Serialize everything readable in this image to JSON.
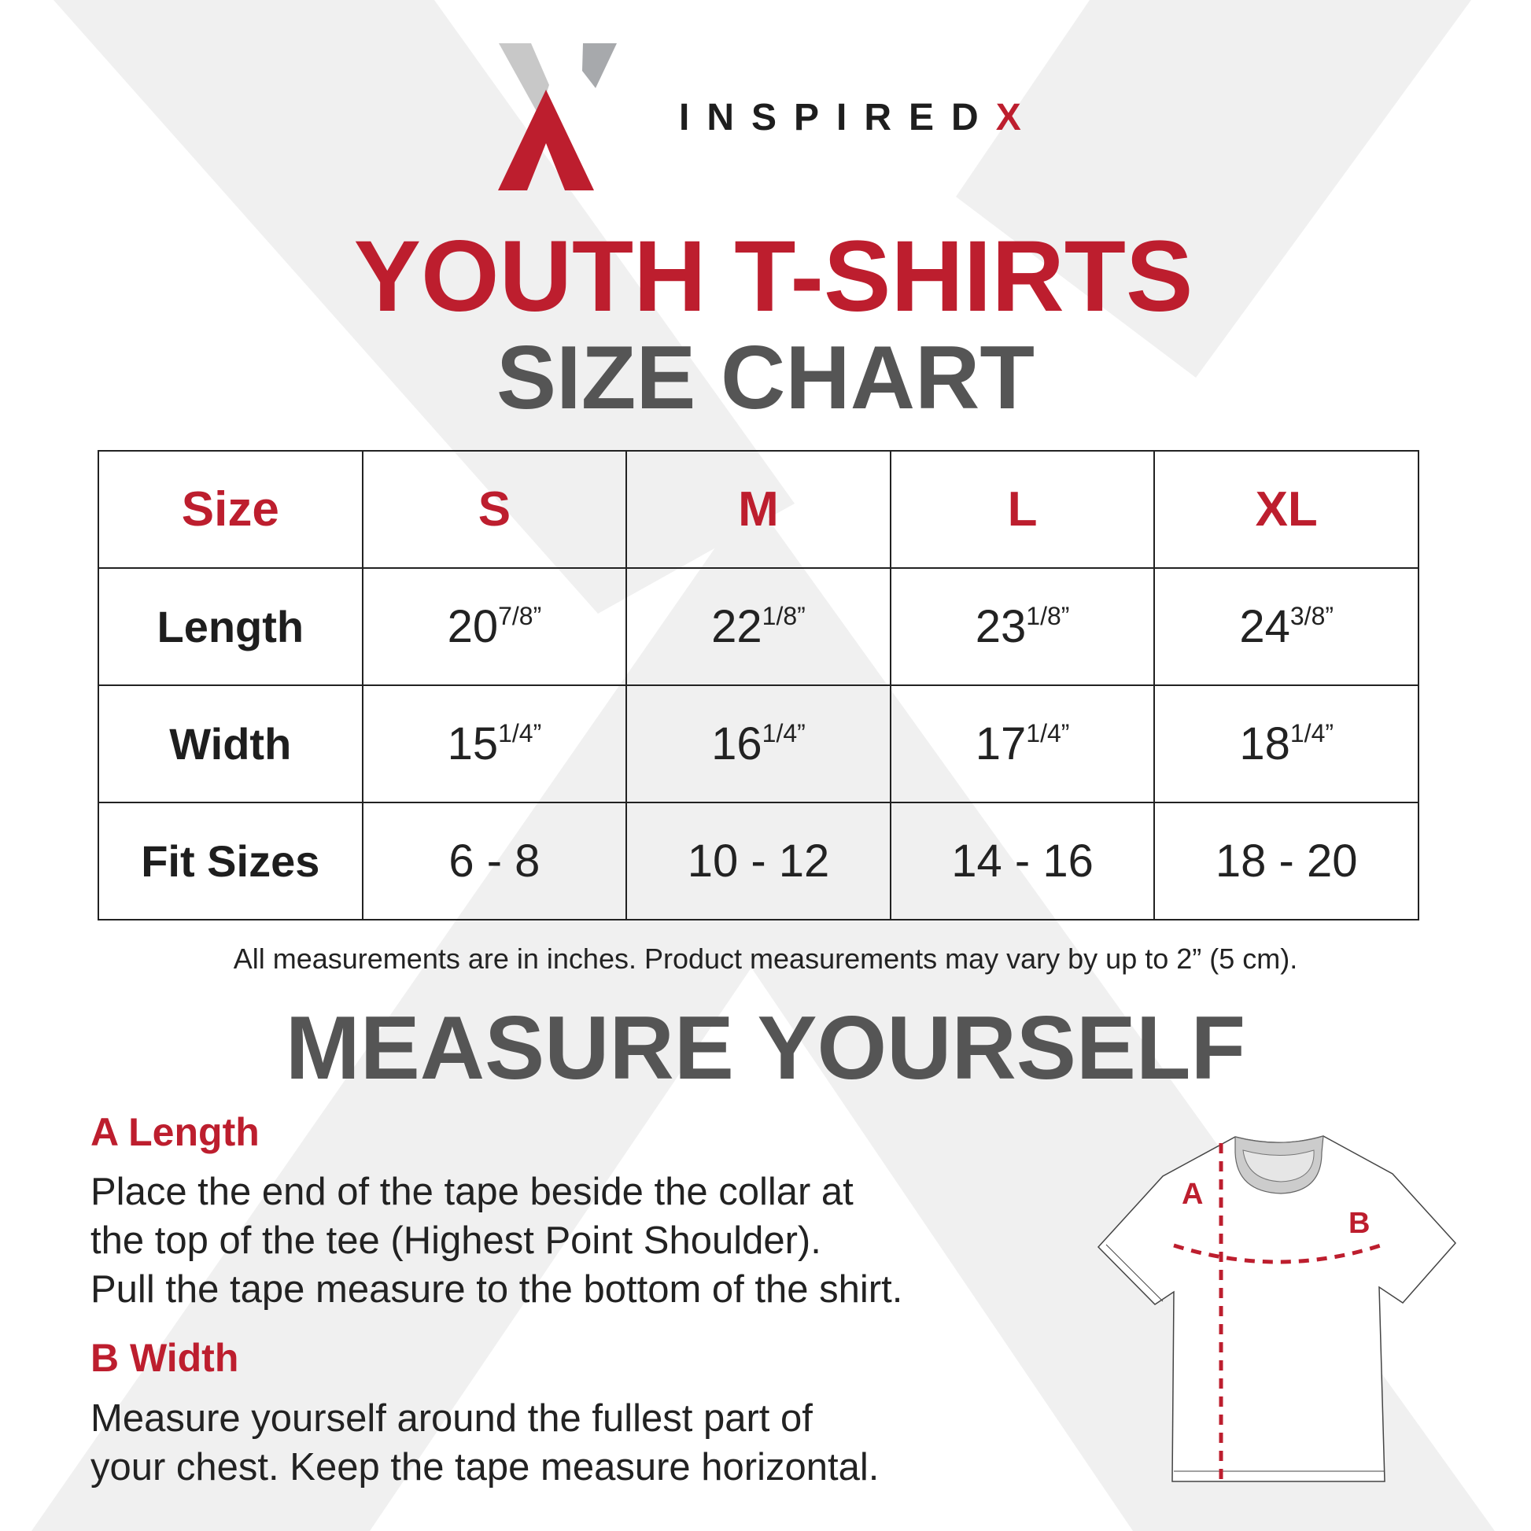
{
  "brand": {
    "name_main": "INSPIRED",
    "name_accent": "X"
  },
  "title": {
    "line1": "YOUTH T-SHIRTS",
    "line2": "SIZE CHART"
  },
  "table": {
    "header": [
      "Size",
      "S",
      "M",
      "L",
      "XL"
    ],
    "rows": [
      {
        "label": "Length",
        "cells": [
          {
            "whole": "20",
            "frac": "7/8",
            "unit": "”"
          },
          {
            "whole": "22",
            "frac": "1/8",
            "unit": "”"
          },
          {
            "whole": "23",
            "frac": "1/8",
            "unit": "”"
          },
          {
            "whole": "24",
            "frac": "3/8",
            "unit": "”"
          }
        ]
      },
      {
        "label": "Width",
        "cells": [
          {
            "whole": "15",
            "frac": "1/4",
            "unit": "”"
          },
          {
            "whole": "16",
            "frac": "1/4",
            "unit": "”"
          },
          {
            "whole": "17",
            "frac": "1/4",
            "unit": "”"
          },
          {
            "whole": "18",
            "frac": "1/4",
            "unit": "”"
          }
        ]
      },
      {
        "label": "Fit Sizes",
        "cells": [
          {
            "whole": "6 - 8"
          },
          {
            "whole": "10 - 12"
          },
          {
            "whole": "14 - 16"
          },
          {
            "whole": "18 - 20"
          }
        ]
      }
    ]
  },
  "note": "All measurements are in inches. Product measurements may vary by up to 2” (5 cm).",
  "measure": {
    "title": "MEASURE YOURSELF",
    "length_heading": "A Length",
    "length_lines": [
      "Place the end of the tape beside the collar at",
      "the top of the tee (Highest Point Shoulder).",
      "Pull the tape measure to the bottom of the shirt."
    ],
    "width_heading": "B Width",
    "width_lines": [
      "Measure yourself around the fullest part of",
      "your chest. Keep the tape measure horizontal."
    ],
    "diagram_label_a": "A",
    "diagram_label_b": "B"
  },
  "colors": {
    "accent": "#bd1e2e",
    "heading_grey": "#555555",
    "background_shape": "#f0f0f0",
    "logo_grey": "#a7a9ac"
  }
}
